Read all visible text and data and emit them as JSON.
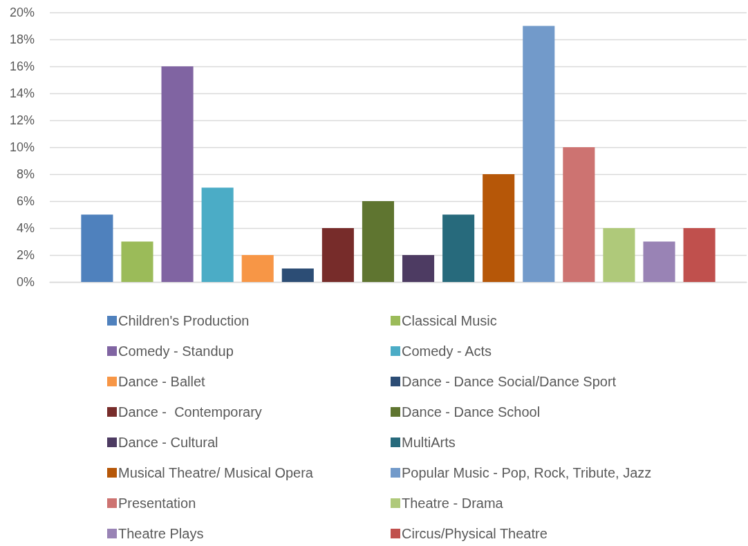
{
  "chart_data": {
    "type": "bar",
    "categories": [
      null
    ],
    "series": [
      {
        "name": "Children's Production",
        "color": "#4f81bd",
        "values": [
          5
        ]
      },
      {
        "name": "Classical Music",
        "color": "#9bbb59",
        "values": [
          3
        ]
      },
      {
        "name": "Comedy - Standup",
        "color": "#8064a2",
        "values": [
          16
        ]
      },
      {
        "name": "Comedy - Acts",
        "color": "#4bacc6",
        "values": [
          7
        ]
      },
      {
        "name": "Dance - Ballet",
        "color": "#f79646",
        "values": [
          2
        ]
      },
      {
        "name": "Dance - Dance Social/Dance Sport",
        "color": "#2c4d75",
        "values": [
          1
        ]
      },
      {
        "name": "Dance -  Contemporary",
        "color": "#772c2a",
        "values": [
          4
        ]
      },
      {
        "name": "Dance - Dance School",
        "color": "#5f7530",
        "values": [
          6
        ]
      },
      {
        "name": "Dance - Cultural",
        "color": "#4d3b62",
        "values": [
          2
        ]
      },
      {
        "name": "MultiArts",
        "color": "#276a7c",
        "values": [
          5
        ]
      },
      {
        "name": "Musical Theatre/ Musical Opera",
        "color": "#b65708",
        "values": [
          8
        ]
      },
      {
        "name": "Popular Music - Pop, Rock, Tribute, Jazz",
        "color": "#729aca",
        "values": [
          19
        ]
      },
      {
        "name": "Presentation",
        "color": "#cd7371",
        "values": [
          10
        ]
      },
      {
        "name": "Theatre - Drama",
        "color": "#afc97a",
        "values": [
          4
        ]
      },
      {
        "name": "Theatre Plays",
        "color": "#9983b5",
        "values": [
          3
        ]
      },
      {
        "name": "Circus/Physical Theatre",
        "color": "#c0504d",
        "values": [
          4
        ]
      }
    ],
    "ylim": [
      0,
      20
    ],
    "yticks": [
      {
        "value": 0,
        "label": "0%"
      },
      {
        "value": 2,
        "label": "2%"
      },
      {
        "value": 4,
        "label": "4%"
      },
      {
        "value": 6,
        "label": "6%"
      },
      {
        "value": 8,
        "label": "8%"
      },
      {
        "value": 10,
        "label": "10%"
      },
      {
        "value": 12,
        "label": "12%"
      },
      {
        "value": 14,
        "label": "14%"
      },
      {
        "value": 16,
        "label": "16%"
      },
      {
        "value": 18,
        "label": "18%"
      },
      {
        "value": 20,
        "label": "20%"
      }
    ],
    "grid": "y",
    "legend": "bottom"
  }
}
